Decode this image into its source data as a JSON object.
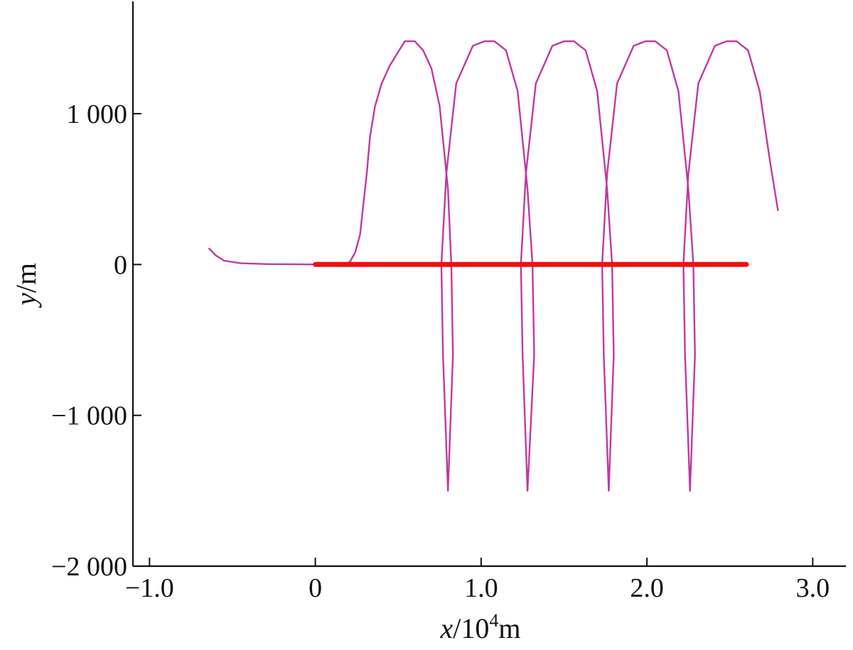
{
  "chart_data": {
    "type": "line",
    "title": "",
    "xlabel": {
      "var": "x",
      "sep": "/",
      "base": "10",
      "exp": "4",
      "unit": "m"
    },
    "ylabel": {
      "var": "y",
      "sep": "/",
      "unit": "m"
    },
    "xlim": [
      -1.1,
      3.2
    ],
    "ylim": [
      -2000,
      1650
    ],
    "xticks": [
      {
        "value": -1.0,
        "label": "−1.0"
      },
      {
        "value": 0,
        "label": "0"
      },
      {
        "value": 1.0,
        "label": "1.0"
      },
      {
        "value": 2.0,
        "label": "2.0"
      },
      {
        "value": 3.0,
        "label": "3.0"
      }
    ],
    "yticks": [
      {
        "value": 1000,
        "label": "1 000"
      },
      {
        "value": 0,
        "label": "0"
      },
      {
        "value": -1000,
        "label": "−1 000"
      },
      {
        "value": -2000,
        "label": "−2 000"
      }
    ],
    "grid": false,
    "legend": "none",
    "series": [
      {
        "color": "#c0399e",
        "points": [
          [
            -0.64,
            105
          ],
          [
            -0.6,
            60
          ],
          [
            -0.55,
            25
          ],
          [
            -0.45,
            8
          ],
          [
            -0.3,
            3
          ],
          [
            -0.1,
            1
          ],
          [
            0.0,
            0
          ],
          [
            0.1,
            0
          ],
          [
            0.18,
            0
          ],
          [
            0.21,
            20
          ],
          [
            0.24,
            80
          ],
          [
            0.27,
            200
          ],
          [
            0.29,
            400
          ],
          [
            0.31,
            600
          ],
          [
            0.33,
            850
          ],
          [
            0.36,
            1050
          ],
          [
            0.4,
            1200
          ],
          [
            0.45,
            1320
          ],
          [
            0.5,
            1410
          ],
          [
            0.54,
            1480
          ],
          [
            0.6,
            1480
          ],
          [
            0.65,
            1420
          ],
          [
            0.7,
            1300
          ],
          [
            0.75,
            1050
          ],
          [
            0.8,
            500
          ],
          [
            0.82,
            0
          ],
          [
            0.83,
            -600
          ],
          [
            0.8,
            -1500
          ],
          [
            0.77,
            -600
          ],
          [
            0.76,
            0
          ],
          [
            0.79,
            600
          ],
          [
            0.85,
            1200
          ],
          [
            0.95,
            1450
          ],
          [
            1.02,
            1480
          ],
          [
            1.08,
            1480
          ],
          [
            1.15,
            1420
          ],
          [
            1.22,
            1150
          ],
          [
            1.28,
            500
          ],
          [
            1.31,
            0
          ],
          [
            1.32,
            -600
          ],
          [
            1.28,
            -1500
          ],
          [
            1.25,
            -600
          ],
          [
            1.24,
            0
          ],
          [
            1.27,
            600
          ],
          [
            1.33,
            1200
          ],
          [
            1.43,
            1450
          ],
          [
            1.5,
            1480
          ],
          [
            1.56,
            1480
          ],
          [
            1.63,
            1420
          ],
          [
            1.7,
            1150
          ],
          [
            1.76,
            500
          ],
          [
            1.79,
            0
          ],
          [
            1.8,
            -600
          ],
          [
            1.77,
            -1500
          ],
          [
            1.74,
            -600
          ],
          [
            1.73,
            0
          ],
          [
            1.76,
            600
          ],
          [
            1.82,
            1200
          ],
          [
            1.92,
            1450
          ],
          [
            1.99,
            1480
          ],
          [
            2.05,
            1480
          ],
          [
            2.12,
            1420
          ],
          [
            2.19,
            1150
          ],
          [
            2.25,
            500
          ],
          [
            2.28,
            0
          ],
          [
            2.29,
            -600
          ],
          [
            2.26,
            -1500
          ],
          [
            2.23,
            -600
          ],
          [
            2.22,
            0
          ],
          [
            2.25,
            600
          ],
          [
            2.31,
            1200
          ],
          [
            2.41,
            1450
          ],
          [
            2.48,
            1480
          ],
          [
            2.54,
            1480
          ],
          [
            2.61,
            1420
          ],
          [
            2.68,
            1150
          ],
          [
            2.74,
            700
          ],
          [
            2.79,
            360
          ]
        ]
      },
      {
        "color": "#1e8fd6",
        "points": []
      },
      {
        "color": "#ee1111",
        "points": [
          [
            0,
            0
          ],
          [
            2.6,
            0
          ]
        ]
      }
    ]
  }
}
